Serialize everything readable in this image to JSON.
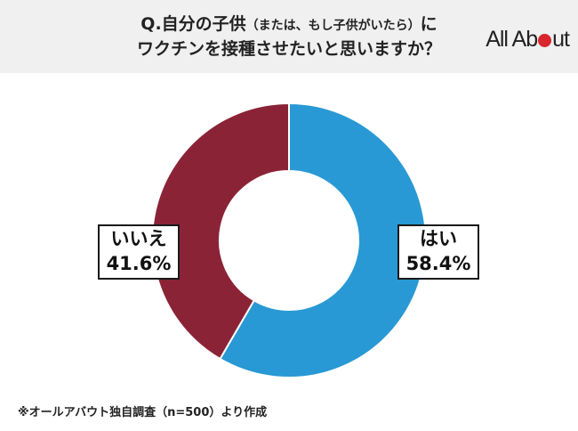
{
  "header": {
    "title_line1_main": "Q.自分の子供",
    "title_line1_sub": "（または、もし子供がいたら）",
    "title_line1_end": "に",
    "title_line2": "ワクチンを接種させたいと思いますか？",
    "logo_part1": "All Ab",
    "logo_part2": "ut"
  },
  "chart_data": {
    "type": "pie",
    "donut": true,
    "categories": [
      "はい",
      "いいえ"
    ],
    "values": [
      58.4,
      41.6
    ],
    "value_labels": [
      "58.4%",
      "41.6%"
    ],
    "colors": [
      "#2899d4",
      "#8b2336"
    ]
  },
  "footnote": "※オールアバウト独自調査（n=500）より作成"
}
